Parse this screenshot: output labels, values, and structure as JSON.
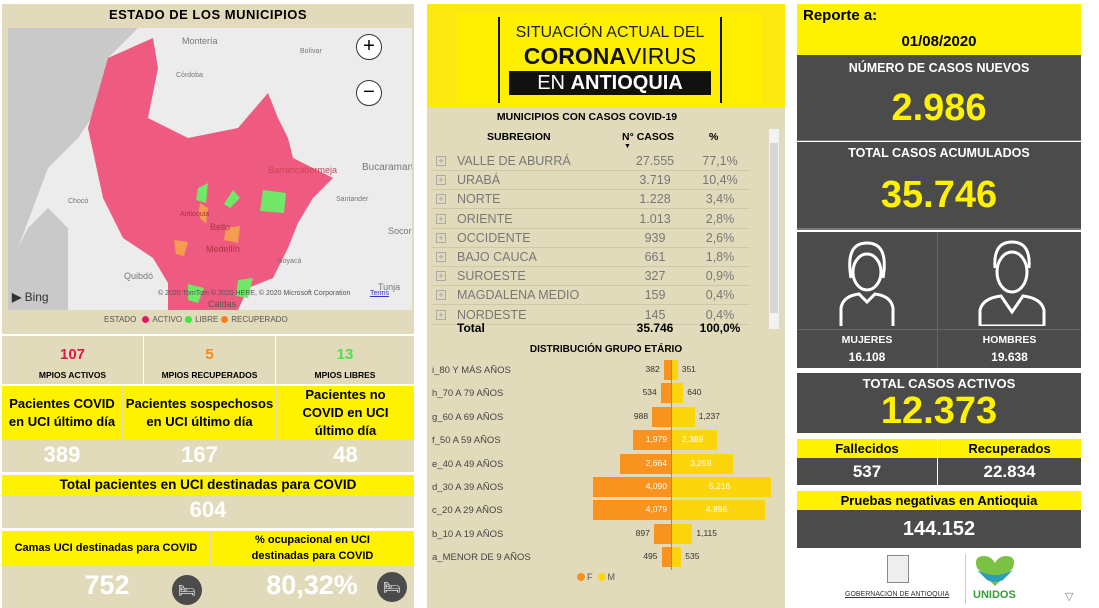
{
  "left": {
    "map_title": "ESTADO DE LOS MUNICIPIOS",
    "map_labels": [
      "Montería",
      "Bolívar",
      "Córdoba",
      "Barrancabermeja",
      "Bucaraman",
      "Santander",
      "Chocó",
      "Antioquia",
      "Bello",
      "Medellín",
      "Socorro",
      "Boyacá",
      "Quibdó",
      "Tunja",
      "Caldas"
    ],
    "zoom_in": "+",
    "zoom_out": "−",
    "bing": "Bing",
    "attribution": "© 2020 TomTom © 2020 HERE, © 2020 Microsoft Corporation",
    "terms": "Terms",
    "legend": {
      "title": "ESTADO",
      "items": [
        {
          "label": "ACTIVO",
          "color": "#e8175d"
        },
        {
          "label": "LIBRE",
          "color": "#3ee83e"
        },
        {
          "label": "RECUPERADO",
          "color": "#f77f1e"
        }
      ]
    },
    "mpios": [
      {
        "value": "107",
        "label": "MPIOS ACTIVOS",
        "color": "#e0194f"
      },
      {
        "value": "5",
        "label": "MPIOS RECUPERADOS",
        "color": "#f28a1c"
      },
      {
        "value": "13",
        "label": "MPIOS LIBRES",
        "color": "#4ce04c"
      }
    ],
    "uci": [
      {
        "label": "Pacientes COVID en UCI último día",
        "value": "389"
      },
      {
        "label": "Pacientes sospechosos en UCI último día",
        "value": "167"
      },
      {
        "label": "Pacientes no COVID en UCI último día",
        "value": "48"
      }
    ],
    "total_uci": {
      "label": "Total pacientes en UCI destinadas para COVID",
      "value": "604"
    },
    "camas": {
      "label": "Camas UCI destinadas para COVID",
      "value": "752"
    },
    "ocupacion": {
      "label": "% ocupacional en UCI destinadas para COVID",
      "value": "80,32%"
    }
  },
  "mid": {
    "header": {
      "line1": "SITUACIÓN ACTUAL DEL",
      "line2a": "CORONA",
      "line2b": "VIRUS",
      "line3a": "EN ",
      "line3b": "ANTIOQUIA"
    },
    "table": {
      "title": "MUNICIPIOS CON CASOS COVID-19",
      "headers": [
        "SUBREGION",
        "N° CASOS",
        "%"
      ],
      "rows": [
        [
          "VALLE DE ABURRÁ",
          "27.555",
          "77,1%"
        ],
        [
          "URABÁ",
          "3.719",
          "10,4%"
        ],
        [
          "NORTE",
          "1.228",
          "3,4%"
        ],
        [
          "ORIENTE",
          "1.013",
          "2,8%"
        ],
        [
          "OCCIDENTE",
          "939",
          "2,6%"
        ],
        [
          "BAJO CAUCA",
          "661",
          "1,8%"
        ],
        [
          "SUROESTE",
          "327",
          "0,9%"
        ],
        [
          "MAGDALENA MEDIO",
          "159",
          "0,4%"
        ],
        [
          "NORDESTE",
          "145",
          "0,4%"
        ]
      ],
      "total": [
        "Total",
        "35.746",
        "100,0%"
      ]
    },
    "chart_data": {
      "type": "bar",
      "title": "DISTRIBUCIÓN GRUPO ETÁRIO",
      "categories": [
        "i_80 Y MÁS AÑOS",
        "h_70 A 79 AÑOS",
        "g_60 A 69 AÑOS",
        "f_50 A 59 AÑOS",
        "e_40 A 49 AÑOS",
        "d_30 A 39 AÑOS",
        "c_20 A 29 AÑOS",
        "b_10 A 19 AÑOS",
        "a_MENOR DE 9 AÑOS"
      ],
      "series": [
        {
          "name": "F",
          "color": "#f7931e",
          "values": [
            382,
            534,
            988,
            1979,
            2664,
            4090,
            4079,
            897,
            495
          ],
          "labels": [
            "382",
            "534",
            "988",
            "1,979",
            "2,664",
            "4,090",
            "4,079",
            "897",
            "495"
          ]
        },
        {
          "name": "M",
          "color": "#fdd50d",
          "values": [
            351,
            640,
            1237,
            2389,
            3259,
            5216,
            4896,
            1115,
            535
          ],
          "labels": [
            "351",
            "640",
            "1,237",
            "2,389",
            "3,259",
            "5,216",
            "4,896",
            "1,115",
            "535"
          ]
        }
      ],
      "legend": "bottom"
    }
  },
  "right": {
    "reporte_label": "Reporte a:",
    "date": "01/08/2020",
    "nuevos": {
      "label": "NÚMERO DE CASOS NUEVOS",
      "value": "2.986"
    },
    "acumulados": {
      "label": "TOTAL CASOS ACUMULADOS",
      "value": "35.746"
    },
    "mujeres": {
      "label": "MUJERES",
      "value": "16.108"
    },
    "hombres": {
      "label": "HOMBRES",
      "value": "19.638"
    },
    "activos": {
      "label": "TOTAL CASOS ACTIVOS",
      "value": "12.373"
    },
    "fallecidos": {
      "label": "Fallecidos",
      "value": "537"
    },
    "recuperados": {
      "label": "Recuperados",
      "value": "22.834"
    },
    "pruebas": {
      "label": "Pruebas negativas en Antioquia",
      "value": "144.152"
    },
    "logo_gob": "GOBERNACIÓN DE ANTIOQUIA",
    "logo_unidos": "UNIDOS"
  }
}
